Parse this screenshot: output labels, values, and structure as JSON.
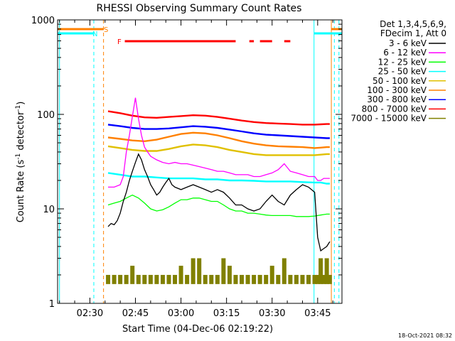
{
  "chart_data": {
    "type": "line",
    "title": "RHESSI Observing Summary Count Rates",
    "xlabel": "Start Time (04-Dec-06 02:19:22)",
    "ylabel_main": "Count Rate (s",
    "ylabel_sup1": "-1",
    "ylabel_mid": " detector",
    "ylabel_sup2": "-1",
    "ylabel_end": ")",
    "y_scale": "log",
    "ylim": [
      1,
      1000
    ],
    "xlim_minutes": [
      19.37,
      113.0
    ],
    "x_ticks": [
      {
        "minute": 30,
        "label": "02:30"
      },
      {
        "minute": 45,
        "label": "02:45"
      },
      {
        "minute": 60,
        "label": "03:00"
      },
      {
        "minute": 75,
        "label": "03:15"
      },
      {
        "minute": 90,
        "label": "03:30"
      },
      {
        "minute": 105,
        "label": "03:45"
      }
    ],
    "y_ticks": [
      {
        "value": 1,
        "label": "1"
      },
      {
        "value": 10,
        "label": "10"
      },
      {
        "value": 100,
        "label": "100"
      },
      {
        "value": 1000,
        "label": "1000"
      }
    ],
    "legend": {
      "header1": "Det 1,3,4,5,6,9,",
      "header2": "FDecim 1, Att 0",
      "placement": "right"
    },
    "series": [
      {
        "name": "3 - 6 keV",
        "color": "#000000",
        "x": [
          36,
          37,
          38,
          39,
          40,
          41,
          42,
          43,
          44,
          45,
          46,
          47,
          48,
          49,
          50,
          51,
          52,
          53,
          54,
          55,
          56,
          57,
          58,
          60,
          62,
          64,
          66,
          68,
          70,
          72,
          74,
          76,
          78,
          80,
          82,
          84,
          86,
          88,
          90,
          92,
          94,
          96,
          98,
          100,
          102,
          104,
          105,
          106,
          107,
          108,
          109
        ],
        "y": [
          6.5,
          7,
          6.8,
          7.5,
          9,
          12,
          15,
          20,
          25,
          31,
          38,
          33,
          26,
          22,
          18,
          16,
          14,
          15,
          17,
          19,
          21,
          18,
          17,
          16,
          17,
          18,
          17,
          16,
          15,
          16,
          15,
          13,
          11,
          11,
          10,
          9.5,
          10,
          12,
          14,
          12,
          11,
          14,
          16,
          18,
          17,
          15,
          5,
          3.6,
          3.8,
          4,
          4.5
        ]
      },
      {
        "name": "6 - 12 keV",
        "color": "#ff00ff",
        "x": [
          36,
          38,
          40,
          41,
          42,
          43,
          44,
          45,
          46,
          47,
          48,
          49,
          50,
          52,
          54,
          56,
          58,
          60,
          62,
          64,
          66,
          68,
          70,
          72,
          74,
          76,
          78,
          80,
          82,
          84,
          86,
          88,
          90,
          92,
          94,
          96,
          98,
          100,
          102,
          104,
          105,
          106,
          107,
          108,
          109
        ],
        "y": [
          17,
          17,
          18,
          22,
          40,
          60,
          95,
          150,
          90,
          60,
          45,
          40,
          36,
          33,
          31,
          30,
          31,
          30,
          30,
          29,
          28,
          27,
          26,
          25,
          25,
          24,
          23,
          23,
          23,
          22,
          22,
          23,
          24,
          26,
          30,
          25,
          24,
          23,
          22,
          22,
          20,
          20,
          21,
          21,
          21
        ]
      },
      {
        "name": "12 - 25 keV",
        "color": "#00ff00",
        "x": [
          36,
          38,
          40,
          42,
          44,
          46,
          48,
          50,
          52,
          54,
          56,
          58,
          60,
          62,
          64,
          66,
          68,
          70,
          72,
          74,
          76,
          78,
          80,
          82,
          84,
          86,
          88,
          90,
          92,
          94,
          96,
          98,
          100,
          102,
          104,
          105,
          106,
          107,
          108,
          109
        ],
        "y": [
          11,
          11.5,
          12,
          13,
          14,
          13,
          11.5,
          10,
          9.5,
          9.8,
          10.5,
          11.5,
          12.5,
          12.5,
          13,
          13,
          12.5,
          12,
          12,
          11,
          10,
          9.5,
          9.5,
          9,
          9,
          8.8,
          8.6,
          8.5,
          8.5,
          8.5,
          8.5,
          8.3,
          8.3,
          8.3,
          8.4,
          8.5,
          8.6,
          8.7,
          8.8,
          8.8
        ]
      },
      {
        "name": "25 - 50 keV",
        "color": "#00ffff",
        "x": [
          36,
          40,
          44,
          48,
          52,
          56,
          60,
          64,
          68,
          72,
          76,
          80,
          84,
          88,
          92,
          96,
          100,
          104,
          106,
          108,
          109
        ],
        "y": [
          24,
          23,
          22,
          22,
          21.5,
          21,
          21,
          21,
          20.5,
          20.5,
          20,
          20,
          19.8,
          19.5,
          19.5,
          19.5,
          19.2,
          19,
          19,
          18.5,
          18.5
        ]
      },
      {
        "name": "50 - 100 keV",
        "color": "#e0c000",
        "x": [
          36,
          40,
          44,
          48,
          52,
          56,
          60,
          64,
          68,
          72,
          76,
          80,
          84,
          88,
          92,
          96,
          100,
          104,
          106,
          108,
          109
        ],
        "y": [
          46,
          44,
          42,
          41,
          41,
          43,
          46,
          48,
          47,
          45,
          42,
          40,
          38,
          37,
          37,
          37,
          37,
          37,
          37.5,
          38,
          38
        ]
      },
      {
        "name": "100 - 300 keV",
        "color": "#ff8000",
        "x": [
          36,
          40,
          44,
          48,
          52,
          56,
          60,
          64,
          68,
          72,
          76,
          80,
          84,
          88,
          92,
          96,
          100,
          104,
          106,
          108,
          109
        ],
        "y": [
          57,
          55,
          53,
          52,
          54,
          58,
          62,
          64,
          63,
          60,
          56,
          52,
          49,
          47,
          46,
          45.5,
          45,
          44,
          44.5,
          45,
          45
        ]
      },
      {
        "name": "300 - 800 keV",
        "color": "#0000ff",
        "x": [
          36,
          40,
          44,
          48,
          52,
          56,
          60,
          64,
          68,
          72,
          76,
          80,
          84,
          88,
          92,
          96,
          100,
          104,
          106,
          108,
          109
        ],
        "y": [
          78,
          75,
          72,
          70,
          70,
          71,
          73,
          75,
          74,
          72,
          69,
          66,
          63,
          61,
          60,
          59,
          58,
          57,
          56.5,
          56,
          56
        ]
      },
      {
        "name": "800 - 7000 keV",
        "color": "#ff0000",
        "x": [
          36,
          40,
          44,
          48,
          52,
          56,
          60,
          64,
          68,
          72,
          76,
          80,
          84,
          88,
          92,
          96,
          100,
          104,
          106,
          108,
          109
        ],
        "y": [
          108,
          103,
          97,
          93,
          92,
          94,
          96,
          98,
          97,
          94,
          90,
          86,
          83,
          81,
          80,
          79,
          78,
          78,
          78.5,
          79,
          79
        ]
      },
      {
        "name": "7000 - 15000 keV",
        "color": "#808000",
        "x": [
          36,
          38,
          40,
          42,
          44,
          46,
          48,
          50,
          52,
          54,
          56,
          58,
          60,
          62,
          64,
          66,
          68,
          70,
          72,
          74,
          76,
          78,
          80,
          82,
          84,
          86,
          88,
          90,
          92,
          94,
          96,
          98,
          100,
          102,
          104,
          105,
          106,
          107,
          108,
          109
        ],
        "y": [
          2,
          2,
          2,
          2,
          2.5,
          2,
          2,
          2,
          2,
          2,
          2,
          2,
          2.5,
          2,
          3,
          3,
          2,
          2,
          2,
          3,
          2.5,
          2,
          2,
          2,
          2,
          2,
          2,
          2.5,
          2,
          3,
          2,
          2,
          2,
          2,
          2,
          2,
          3,
          2,
          3,
          2
        ]
      }
    ],
    "flags": [
      {
        "label": "S",
        "color": "#ff8000",
        "x_intervals": [
          [
            19.37,
            34.5
          ],
          [
            109.5,
            113
          ]
        ],
        "level": "top"
      },
      {
        "label": "N",
        "color": "#00ffff",
        "x_intervals": [
          [
            19.37,
            31.3
          ],
          [
            103.8,
            113
          ]
        ],
        "level": "second"
      },
      {
        "label": "F",
        "color": "#ff0000",
        "x_intervals": [
          [
            41.5,
            78
          ],
          [
            82.5,
            84
          ],
          [
            86,
            90
          ],
          [
            94,
            96
          ]
        ],
        "level": "third"
      }
    ],
    "boundaries": [
      {
        "minute": 20.0,
        "color": "#00ffff",
        "style": "solid"
      },
      {
        "minute": 31.3,
        "color": "#00ffff",
        "style": "dashed"
      },
      {
        "minute": 34.5,
        "color": "#ff8000",
        "style": "dashed"
      },
      {
        "minute": 103.8,
        "color": "#00ffff",
        "style": "solid"
      },
      {
        "minute": 109.5,
        "color": "#ff8000",
        "style": "solid"
      },
      {
        "minute": 110.5,
        "color": "#00ffff",
        "style": "dashed"
      },
      {
        "minute": 112.0,
        "color": "#00ffff",
        "style": "dashed"
      }
    ]
  },
  "footer": {
    "date_stamp": "18-Oct-2021 08:32"
  }
}
